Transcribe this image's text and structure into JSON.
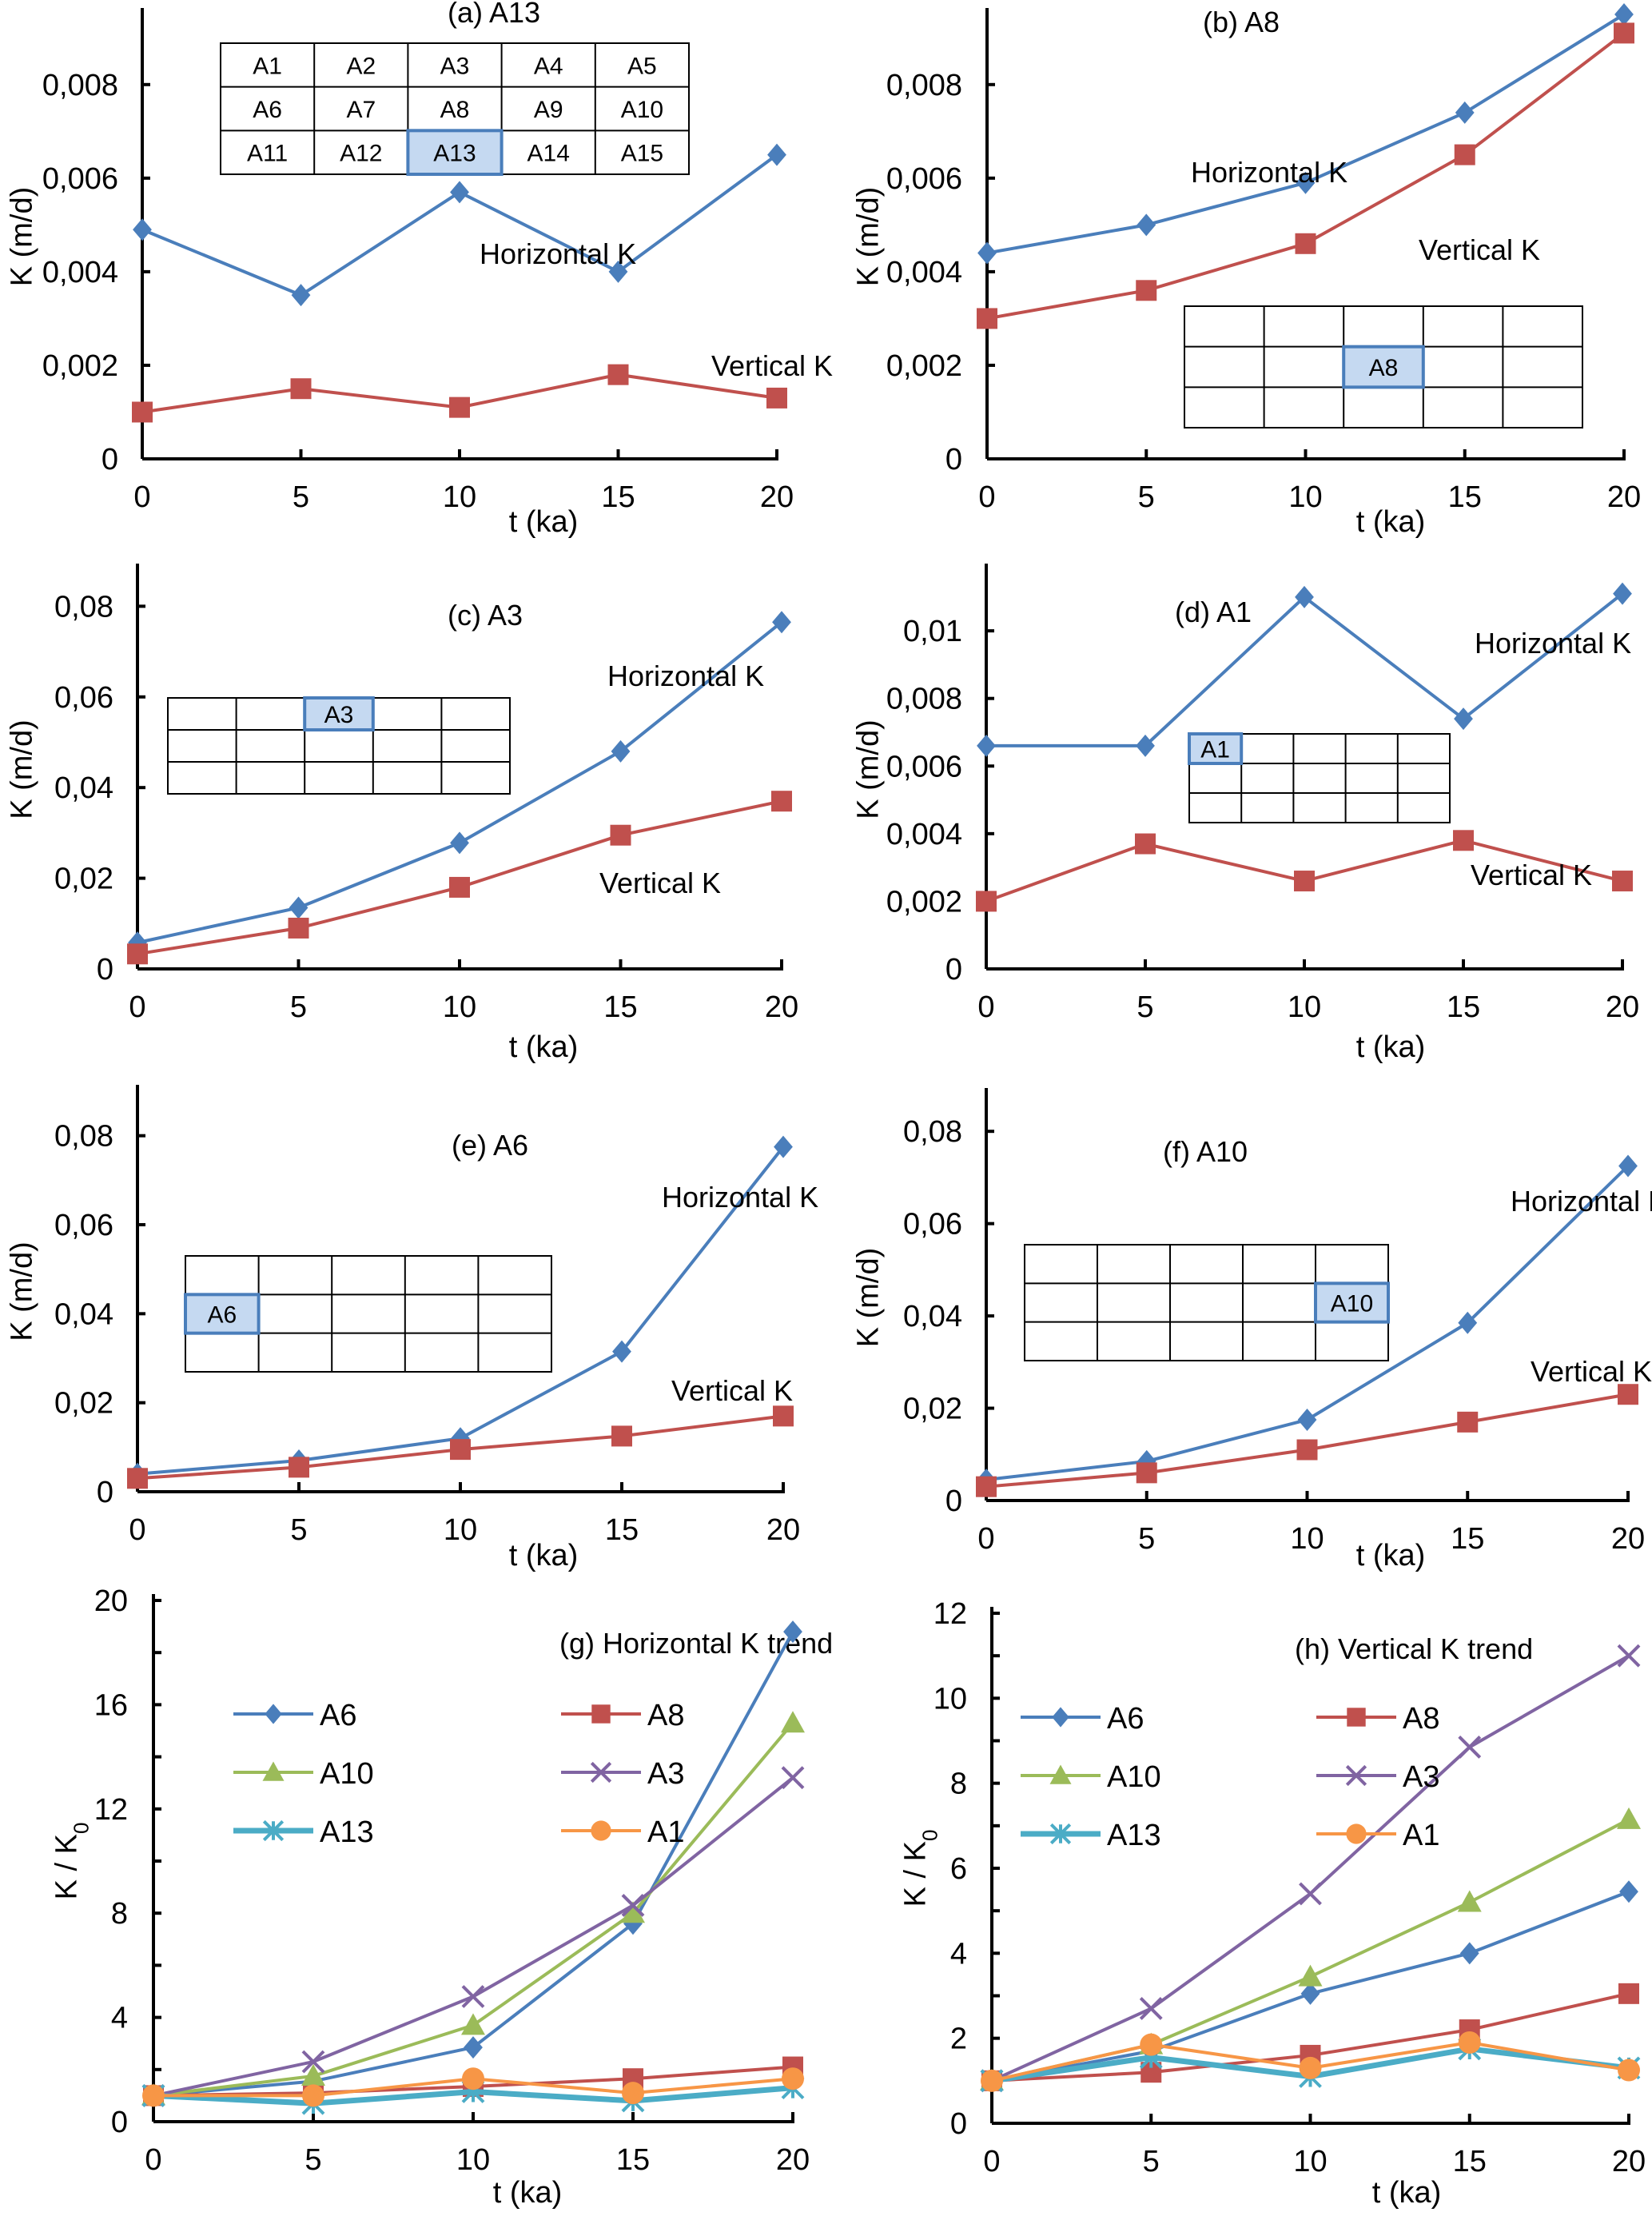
{
  "colors": {
    "horizontal": "#4A7EBB",
    "vertical": "#C0504D",
    "A6": "#4A7EBB",
    "A8": "#C0504D",
    "A10": "#9BBB59",
    "A3": "#8064A2",
    "A13": "#4BACC6",
    "A1": "#F79646",
    "inset_highlight_fill": "#C5D9F1",
    "inset_highlight_border": "#4A7EBB"
  },
  "chart_data": [
    {
      "id": "a",
      "type": "line",
      "title": "(a)  A13",
      "xlabel": "t  (ka)",
      "ylabel": "K (m/d)",
      "x": [
        0,
        5,
        10,
        15,
        20
      ],
      "xticks": [
        "0",
        "5",
        "10",
        "15",
        "20"
      ],
      "xlim": [
        0,
        20
      ],
      "ylim": [
        0,
        0.0095
      ],
      "yticks": [
        0,
        0.002,
        0.004,
        0.006,
        0.008
      ],
      "ytick_labels": [
        "0",
        "0,002",
        "0,004",
        "0,006",
        "0,008"
      ],
      "series": [
        {
          "name": "Horizontal K",
          "marker": "diamond",
          "color_key": "horizontal",
          "values": [
            0.0049,
            0.0035,
            0.0057,
            0.004,
            0.0065
          ]
        },
        {
          "name": "Vertical K",
          "marker": "square",
          "color_key": "vertical",
          "values": [
            0.001,
            0.0015,
            0.0011,
            0.0018,
            0.0013
          ]
        }
      ],
      "annotations": [
        "Horizontal K",
        "Vertical K"
      ],
      "inset": {
        "highlight": "A13",
        "cells": [
          [
            "A1",
            "A2",
            "A3",
            "A4",
            "A5"
          ],
          [
            "A6",
            "A7",
            "A8",
            "A9",
            "A10"
          ],
          [
            "A11",
            "A12",
            "A13",
            "A14",
            "A15"
          ]
        ],
        "labelled": true
      }
    },
    {
      "id": "b",
      "type": "line",
      "title": "(b) A8",
      "xlabel": "t  (ka)",
      "ylabel": "K (m/d)",
      "x": [
        0,
        5,
        10,
        15,
        20
      ],
      "xticks": [
        "0",
        "5",
        "10",
        "15",
        "20"
      ],
      "xlim": [
        0,
        20
      ],
      "ylim": [
        0,
        0.0095
      ],
      "yticks": [
        0,
        0.002,
        0.004,
        0.006,
        0.008
      ],
      "ytick_labels": [
        "0",
        "0,002",
        "0,004",
        "0,006",
        "0,008"
      ],
      "series": [
        {
          "name": "Horizontal K",
          "marker": "diamond",
          "color_key": "horizontal",
          "values": [
            0.0044,
            0.005,
            0.0059,
            0.0074,
            0.0095
          ]
        },
        {
          "name": "Vertical K",
          "marker": "square",
          "color_key": "vertical",
          "values": [
            0.003,
            0.0036,
            0.0046,
            0.0065,
            0.0091
          ]
        }
      ],
      "annotations": [
        "Horizontal K",
        "Vertical K"
      ],
      "inset": {
        "highlight": "A8",
        "row": 1,
        "col": 2,
        "labelled": false
      }
    },
    {
      "id": "c",
      "type": "line",
      "title": "(c)  A3",
      "xlabel": "t  (ka)",
      "ylabel": "K (m/d)",
      "x": [
        0,
        5,
        10,
        15,
        20
      ],
      "xticks": [
        "0",
        "5",
        "10",
        "15",
        "20"
      ],
      "xlim": [
        0,
        20
      ],
      "ylim": [
        0,
        0.088
      ],
      "yticks": [
        0,
        0.02,
        0.04,
        0.06,
        0.08
      ],
      "ytick_labels": [
        "0",
        "0,02",
        "0,04",
        "0,06",
        "0,08"
      ],
      "series": [
        {
          "name": "Horizontal K",
          "marker": "diamond",
          "color_key": "horizontal",
          "values": [
            0.0058,
            0.0135,
            0.0278,
            0.048,
            0.0765
          ]
        },
        {
          "name": "Vertical K",
          "marker": "square",
          "color_key": "vertical",
          "values": [
            0.0033,
            0.009,
            0.018,
            0.0295,
            0.037
          ]
        }
      ],
      "annotations": [
        "Horizontal K",
        "Vertical K"
      ],
      "inset": {
        "highlight": "A3",
        "row": 0,
        "col": 2,
        "labelled": false
      }
    },
    {
      "id": "d",
      "type": "line",
      "title": "(d) A1",
      "xlabel": "t  (ka)",
      "ylabel": "K (m/d)",
      "x": [
        0,
        5,
        10,
        15,
        20
      ],
      "xticks": [
        "0",
        "5",
        "10",
        "15",
        "20"
      ],
      "xlim": [
        0,
        20
      ],
      "ylim": [
        0,
        0.0118
      ],
      "yticks": [
        0,
        0.002,
        0.004,
        0.006,
        0.008,
        0.01
      ],
      "ytick_labels": [
        "0",
        "0,002",
        "0,004",
        "0,006",
        "0,008",
        "0,01"
      ],
      "series": [
        {
          "name": "Horizontal K",
          "marker": "diamond",
          "color_key": "horizontal",
          "values": [
            0.0066,
            0.0066,
            0.011,
            0.0074,
            0.0111
          ]
        },
        {
          "name": "Vertical K",
          "marker": "square",
          "color_key": "vertical",
          "values": [
            0.002,
            0.0037,
            0.0026,
            0.0038,
            0.0026
          ]
        }
      ],
      "annotations": [
        "Horizontal K",
        "Vertical K"
      ],
      "inset": {
        "highlight": "A1",
        "row": 0,
        "col": 0,
        "labelled": false
      }
    },
    {
      "id": "e",
      "type": "line",
      "title": "(e)  A6",
      "xlabel": "t  (ka)",
      "ylabel": "K (m/d)",
      "x": [
        0,
        5,
        10,
        15,
        20
      ],
      "xticks": [
        "0",
        "5",
        "10",
        "15",
        "20"
      ],
      "xlim": [
        0,
        20
      ],
      "ylim": [
        0,
        0.09
      ],
      "yticks": [
        0,
        0.02,
        0.04,
        0.06,
        0.08
      ],
      "ytick_labels": [
        "0",
        "0,02",
        "0,04",
        "0,06",
        "0,08"
      ],
      "series": [
        {
          "name": "Horizontal K",
          "marker": "diamond",
          "color_key": "horizontal",
          "values": [
            0.004,
            0.007,
            0.012,
            0.0315,
            0.0775
          ]
        },
        {
          "name": "Vertical K",
          "marker": "square",
          "color_key": "vertical",
          "values": [
            0.003,
            0.0055,
            0.0095,
            0.0125,
            0.017
          ]
        }
      ],
      "annotations": [
        "Horizontal K",
        "Vertical K"
      ],
      "inset": {
        "highlight": "A6",
        "row": 1,
        "col": 0,
        "labelled": false
      }
    },
    {
      "id": "f",
      "type": "line",
      "title": "(f) A10",
      "xlabel": "t  (ka)",
      "ylabel": "K (m/d)",
      "x": [
        0,
        5,
        10,
        15,
        20
      ],
      "xticks": [
        "0",
        "5",
        "10",
        "15",
        "20"
      ],
      "xlim": [
        0,
        20
      ],
      "ylim": [
        0,
        0.088
      ],
      "yticks": [
        0,
        0.02,
        0.04,
        0.06,
        0.08
      ],
      "ytick_labels": [
        "0",
        "0,02",
        "0,04",
        "0,06",
        "0,08"
      ],
      "series": [
        {
          "name": "Horizontal K",
          "marker": "diamond",
          "color_key": "horizontal",
          "values": [
            0.0045,
            0.0085,
            0.0175,
            0.0385,
            0.0725
          ]
        },
        {
          "name": "Vertical K",
          "marker": "square",
          "color_key": "vertical",
          "values": [
            0.003,
            0.006,
            0.011,
            0.017,
            0.023
          ]
        }
      ],
      "annotations": [
        "Horizontal K",
        "Vertical K"
      ],
      "inset": {
        "highlight": "A10",
        "row": 1,
        "col": 4,
        "labelled": false
      }
    },
    {
      "id": "g",
      "type": "line",
      "title": "(g)  Horizontal K trend",
      "xlabel": "t  (ka)",
      "ylabel": "K / K0",
      "x": [
        0,
        5,
        10,
        15,
        20
      ],
      "xticks": [
        "0",
        "5",
        "10",
        "15",
        "20"
      ],
      "xlim": [
        0,
        20
      ],
      "ylim": [
        0,
        20
      ],
      "yticks": [
        0,
        4,
        8,
        12,
        16,
        20
      ],
      "ytick_labels": [
        "0",
        "4",
        "8",
        "12",
        "16",
        "20"
      ],
      "minor_yticks": [
        2,
        6,
        10,
        14,
        18
      ],
      "legend": "upper-left, 2 columns",
      "series": [
        {
          "name": "A6",
          "marker": "diamond",
          "color_key": "A6",
          "values": [
            1.0,
            1.55,
            2.85,
            7.6,
            18.8
          ]
        },
        {
          "name": "A8",
          "marker": "square",
          "color_key": "A8",
          "values": [
            1.0,
            1.1,
            1.35,
            1.65,
            2.1
          ]
        },
        {
          "name": "A10",
          "marker": "triangle",
          "color_key": "A10",
          "values": [
            1.0,
            1.75,
            3.7,
            8.0,
            15.3
          ]
        },
        {
          "name": "A3",
          "marker": "x",
          "color_key": "A3",
          "values": [
            1.0,
            2.3,
            4.8,
            8.3,
            13.2
          ]
        },
        {
          "name": "A13",
          "marker": "star",
          "color_key": "A13",
          "values": [
            1.0,
            0.7,
            1.15,
            0.8,
            1.3
          ]
        },
        {
          "name": "A1",
          "marker": "circle",
          "color_key": "A1",
          "values": [
            1.0,
            1.0,
            1.65,
            1.1,
            1.65
          ]
        }
      ]
    },
    {
      "id": "h",
      "type": "line",
      "title": "(h) Vertical K trend",
      "xlabel": "t  (ka)",
      "ylabel": "K / K0",
      "x": [
        0,
        5,
        10,
        15,
        20
      ],
      "xticks": [
        "0",
        "5",
        "10",
        "15",
        "20"
      ],
      "xlim": [
        0,
        20
      ],
      "ylim": [
        0,
        12
      ],
      "yticks": [
        0,
        2,
        4,
        6,
        8,
        10,
        12
      ],
      "ytick_labels": [
        "0",
        "2",
        "4",
        "6",
        "8",
        "10",
        "12"
      ],
      "minor_yticks": [
        1,
        3,
        5,
        7,
        9,
        11
      ],
      "legend": "upper-left, 2 columns",
      "series": [
        {
          "name": "A6",
          "marker": "diamond",
          "color_key": "A6",
          "values": [
            1.0,
            1.7,
            3.05,
            4.0,
            5.45
          ]
        },
        {
          "name": "A8",
          "marker": "square",
          "color_key": "A8",
          "values": [
            1.0,
            1.2,
            1.6,
            2.2,
            3.05
          ]
        },
        {
          "name": "A10",
          "marker": "triangle",
          "color_key": "A10",
          "values": [
            1.0,
            1.85,
            3.45,
            5.2,
            7.15
          ]
        },
        {
          "name": "A3",
          "marker": "x",
          "color_key": "A3",
          "values": [
            1.0,
            2.7,
            5.4,
            8.85,
            11.0
          ]
        },
        {
          "name": "A13",
          "marker": "star",
          "color_key": "A13",
          "values": [
            1.0,
            1.55,
            1.1,
            1.75,
            1.3
          ]
        },
        {
          "name": "A1",
          "marker": "circle",
          "color_key": "A1",
          "values": [
            1.0,
            1.85,
            1.3,
            1.9,
            1.25
          ]
        }
      ]
    }
  ]
}
